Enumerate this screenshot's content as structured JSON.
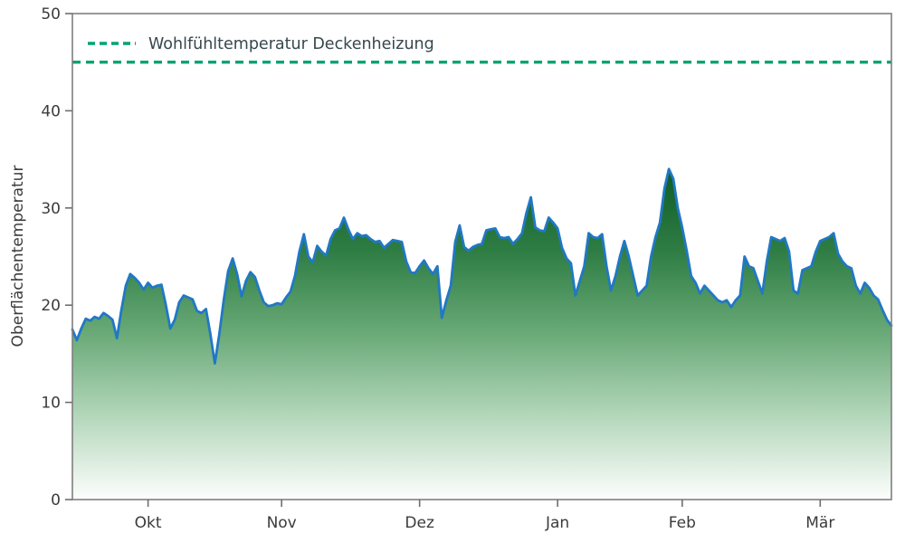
{
  "chart_data": {
    "type": "area",
    "title": "",
    "xlabel": "",
    "ylabel": "Oberflächentemperatur",
    "y_range": [
      0,
      50
    ],
    "x_range": [
      0,
      184
    ],
    "y_ticks": [
      0,
      10,
      20,
      30,
      40,
      50
    ],
    "x_ticks": [
      {
        "day": 17,
        "label": "Okt"
      },
      {
        "day": 47,
        "label": "Nov"
      },
      {
        "day": 78,
        "label": "Dez"
      },
      {
        "day": 109,
        "label": "Jan"
      },
      {
        "day": 137,
        "label": "Feb"
      },
      {
        "day": 168,
        "label": "Mär"
      }
    ],
    "grid": false,
    "legend_position": "upper-left",
    "x_note": "daily values, x = day index (season Okt–Mär)",
    "threshold": {
      "value": 45,
      "label": "Wohlfühltemperatur Deckenheizung",
      "color": "#00a372",
      "style": "dashed"
    },
    "series": [
      {
        "name": "Oberflächentemperatur",
        "color": "#2178c4",
        "fill_gradient": [
          "#0f5c27",
          "#2e7d44",
          "#6aaa78",
          "#b4d7bb",
          "#fdfefd"
        ],
        "values": [
          17.5,
          16.4,
          17.6,
          18.6,
          18.4,
          18.8,
          18.6,
          19.2,
          18.9,
          18.5,
          16.6,
          19.5,
          22.0,
          23.2,
          22.8,
          22.3,
          21.6,
          22.3,
          21.8,
          22.0,
          22.1,
          20.0,
          17.6,
          18.5,
          20.3,
          21.0,
          20.8,
          20.6,
          19.4,
          19.2,
          19.6,
          17.0,
          14.0,
          17.0,
          20.5,
          23.5,
          24.8,
          23.2,
          20.9,
          22.5,
          23.4,
          22.9,
          21.5,
          20.3,
          19.9,
          20.0,
          20.2,
          20.1,
          20.8,
          21.4,
          23.0,
          25.5,
          27.3,
          25.0,
          24.4,
          26.1,
          25.5,
          25.1,
          26.8,
          27.7,
          27.9,
          29.0,
          27.8,
          26.8,
          27.4,
          27.1,
          27.2,
          26.8,
          26.5,
          26.6,
          25.9,
          26.3,
          26.7,
          26.6,
          26.5,
          24.5,
          23.4,
          23.3,
          24.0,
          24.6,
          23.8,
          23.2,
          24.0,
          18.7,
          20.5,
          22.0,
          26.5,
          28.2,
          26.0,
          25.6,
          26.0,
          26.2,
          26.3,
          27.7,
          27.8,
          27.9,
          27.0,
          26.9,
          27.0,
          26.3,
          26.8,
          27.4,
          29.5,
          31.1,
          28.0,
          27.7,
          27.6,
          29.0,
          28.5,
          27.9,
          25.9,
          24.8,
          24.3,
          21.0,
          22.5,
          24.0,
          27.4,
          27.0,
          26.9,
          27.3,
          24.0,
          21.5,
          23.0,
          25.0,
          26.6,
          25.0,
          23.0,
          21.0,
          21.5,
          22.0,
          25.0,
          27.0,
          28.5,
          32.0,
          34.0,
          33.0,
          30.0,
          28.0,
          25.6,
          23.0,
          22.3,
          21.2,
          22.0,
          21.5,
          21.0,
          20.5,
          20.3,
          20.5,
          19.8,
          20.5,
          21.0,
          25.0,
          24.0,
          23.8,
          22.5,
          21.2,
          24.5,
          27.0,
          26.8,
          26.6,
          26.9,
          25.5,
          21.5,
          21.2,
          23.6,
          23.8,
          24.0,
          25.5,
          26.6,
          26.8,
          27.0,
          27.4,
          25.3,
          24.5,
          24.0,
          23.8,
          22.0,
          21.2,
          22.3,
          21.8,
          21.0,
          20.6,
          19.5,
          18.5,
          17.9
        ]
      }
    ]
  }
}
